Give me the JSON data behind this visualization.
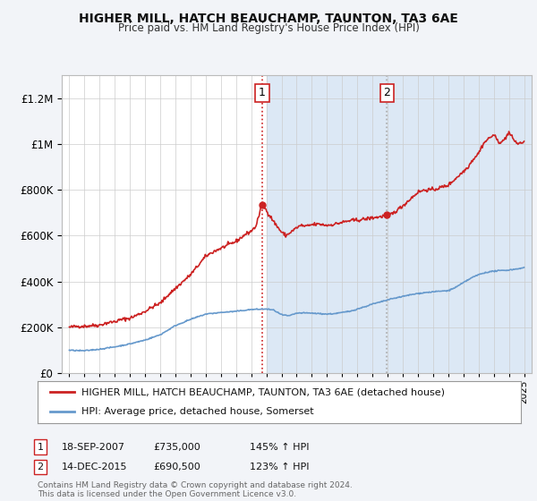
{
  "title": "HIGHER MILL, HATCH BEAUCHAMP, TAUNTON, TA3 6AE",
  "subtitle": "Price paid vs. HM Land Registry's House Price Index (HPI)",
  "red_line_label": "HIGHER MILL, HATCH BEAUCHAMP, TAUNTON, TA3 6AE (detached house)",
  "blue_line_label": "HPI: Average price, detached house, Somerset",
  "annotation1_date": "18-SEP-2007",
  "annotation1_price": "£735,000",
  "annotation1_hpi": "145% ↑ HPI",
  "annotation1_year": 2007.72,
  "annotation1_value": 735000,
  "annotation2_date": "14-DEC-2015",
  "annotation2_price": "£690,500",
  "annotation2_hpi": "123% ↑ HPI",
  "annotation2_year": 2015.96,
  "annotation2_value": 690500,
  "footer": "Contains HM Land Registry data © Crown copyright and database right 2024.\nThis data is licensed under the Open Government Licence v3.0.",
  "ylim": [
    0,
    1300000
  ],
  "xlim_start": 1994.5,
  "xlim_end": 2025.5,
  "background_color": "#f2f4f8",
  "plot_bg_color": "#ffffff",
  "red_color": "#cc2222",
  "blue_color": "#6699cc",
  "grid_color": "#cccccc",
  "shade_start": 2008.0,
  "shade_end": 2025.5,
  "shade_color": "#dce8f5",
  "ann1_vline_color": "#cc2222",
  "ann2_vline_color": "#aaaaaa",
  "ann1_vline_style": "dotted",
  "ann2_vline_style": "dotted"
}
